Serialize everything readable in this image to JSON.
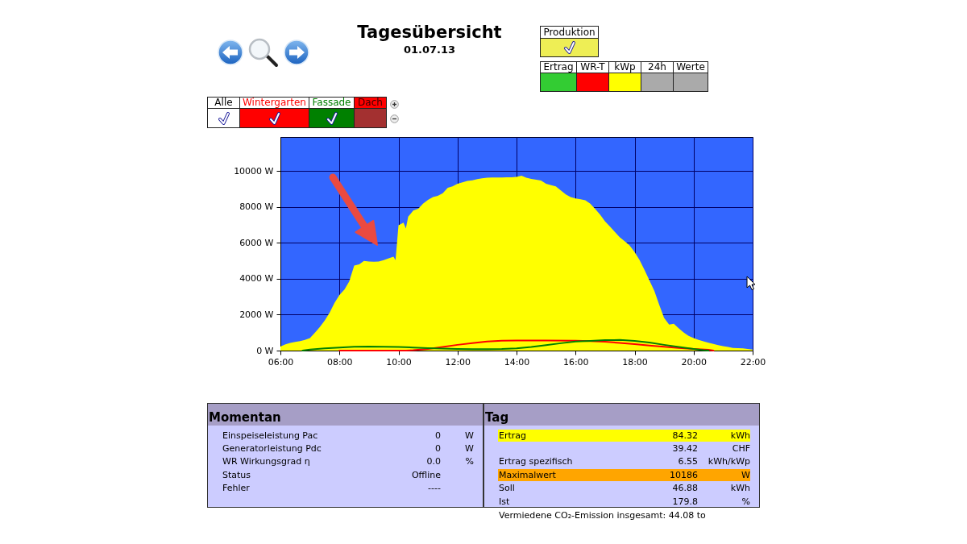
{
  "chart_data": [
    {
      "type": "area",
      "title": "Tagesübersicht",
      "subtitle": "01.07.13",
      "xlim": [
        6,
        22
      ],
      "xticks": [
        {
          "value": 6,
          "label": "06:00"
        },
        {
          "value": 8,
          "label": "08:00"
        },
        {
          "value": 10,
          "label": "10:00"
        },
        {
          "value": 12,
          "label": "12:00"
        },
        {
          "value": 14,
          "label": "14:00"
        },
        {
          "value": 16,
          "label": "16:00"
        },
        {
          "value": 18,
          "label": "18:00"
        },
        {
          "value": 20,
          "label": "20:00"
        },
        {
          "value": 22,
          "label": "22:00"
        }
      ],
      "ylim": [
        0,
        11900
      ],
      "yticks": [
        {
          "value": 0,
          "label": "0 W"
        },
        {
          "value": 2000,
          "label": "2000 W"
        },
        {
          "value": 4000,
          "label": "4000 W"
        },
        {
          "value": 6000,
          "label": "6000 W"
        },
        {
          "value": 8000,
          "label": "8000 W"
        },
        {
          "value": 10000,
          "label": "10000 W"
        }
      ],
      "grid": true,
      "legend": "top left",
      "series": [
        {
          "type": "area",
          "color": "#ffff00",
          "x": [
            6,
            6.17,
            6.33,
            6.5,
            6.67,
            6.83,
            7,
            7.17,
            7.33,
            7.5,
            7.67,
            7.83,
            8,
            8.17,
            8.33,
            8.5,
            8.67,
            8.83,
            9,
            9.17,
            9.33,
            9.5,
            9.67,
            9.83,
            9.9,
            9.95,
            10,
            10.17,
            10.25,
            10.33,
            10.5,
            10.67,
            10.83,
            11,
            11.17,
            11.33,
            11.5,
            11.67,
            11.83,
            12,
            12.17,
            12.33,
            12.5,
            12.67,
            12.83,
            13,
            13.17,
            13.33,
            13.5,
            13.67,
            13.83,
            14,
            14.17,
            14.33,
            14.5,
            14.67,
            14.83,
            15,
            15.17,
            15.33,
            15.5,
            15.67,
            15.83,
            16,
            16.17,
            16.33,
            16.5,
            16.67,
            16.83,
            17,
            17.17,
            17.33,
            17.5,
            17.67,
            17.83,
            18,
            18.17,
            18.33,
            18.5,
            18.67,
            18.83,
            19,
            19.17,
            19.33,
            19.5,
            19.67,
            19.83,
            20,
            20.17,
            20.33,
            20.5,
            20.67,
            20.83,
            21,
            21.17,
            21.33,
            21.5,
            21.67,
            21.83,
            22
          ],
          "values": [
            220,
            350,
            430,
            480,
            530,
            600,
            700,
            1000,
            1300,
            1670,
            2120,
            2650,
            3100,
            3400,
            3850,
            4740,
            4800,
            5000,
            4960,
            4950,
            4960,
            5040,
            5140,
            5230,
            5040,
            6000,
            6980,
            7130,
            6800,
            7460,
            7800,
            7900,
            8180,
            8400,
            8550,
            8620,
            8770,
            9070,
            9150,
            9300,
            9370,
            9450,
            9490,
            9550,
            9600,
            9630,
            9640,
            9640,
            9640,
            9650,
            9660,
            9680,
            9750,
            9630,
            9570,
            9520,
            9480,
            9300,
            9220,
            9150,
            8920,
            8700,
            8550,
            8480,
            8430,
            8370,
            8180,
            7880,
            7580,
            7200,
            6900,
            6610,
            6310,
            6080,
            5860,
            5490,
            5040,
            4510,
            3920,
            3320,
            2570,
            1820,
            1450,
            1490,
            1230,
            1000,
            820,
            700,
            600,
            520,
            440,
            370,
            300,
            250,
            200,
            150,
            130,
            120,
            90,
            60
          ]
        },
        {
          "name": "Wintergarten",
          "type": "line",
          "color": "#ff0000",
          "x": [
            8,
            9,
            10,
            10.25,
            10.5,
            11,
            11.5,
            12,
            12.5,
            13,
            13.5,
            14,
            15,
            16,
            16.5,
            17,
            17.5,
            18,
            18.5,
            19,
            19.5,
            20,
            20.5,
            20.67
          ],
          "values": [
            0,
            0,
            0,
            0,
            20,
            90,
            200,
            320,
            420,
            510,
            550,
            560,
            560,
            550,
            530,
            490,
            430,
            360,
            280,
            210,
            150,
            90,
            40,
            0
          ]
        },
        {
          "name": "Fassade",
          "type": "line",
          "color": "#008000",
          "x": [
            6.75,
            7,
            7.5,
            8,
            8.5,
            9,
            9.5,
            10,
            10.5,
            11,
            11.5,
            12,
            12.5,
            13,
            13.5,
            14,
            14.5,
            15,
            15.5,
            16,
            16.5,
            17,
            17.5,
            18,
            18.5,
            19,
            19.5,
            20,
            20.33,
            20.5
          ],
          "values": [
            0,
            60,
            120,
            170,
            210,
            220,
            210,
            200,
            170,
            140,
            110,
            90,
            80,
            80,
            90,
            120,
            200,
            300,
            410,
            500,
            540,
            580,
            590,
            540,
            450,
            320,
            200,
            90,
            20,
            0
          ]
        }
      ],
      "annotations": [
        "Alle",
        "Dach",
        "Produktion",
        "Ertrag",
        "WR-T",
        "kWp",
        "24h",
        "Werte"
      ]
    },
    {
      "type": "other",
      "title": "Momentan",
      "annotations": [
        "Einspeiseleistung Pac",
        "0",
        "W",
        "Generatorleistung Pdc",
        "0",
        "W",
        "WR Wirkungsgrad η",
        "0.0",
        "%",
        "Status",
        "Offline",
        null,
        "Fehler",
        "----",
        null
      ]
    },
    {
      "type": "other",
      "title": "Tag",
      "annotations": [
        "Ertrag",
        "84.32",
        "kWh",
        null,
        "39.42",
        "CHF",
        "Ertrag spezifisch",
        "6.55",
        "kWh/kWp",
        "Maximalwert",
        "10186",
        "W",
        "Soll",
        "46.88",
        "kWh",
        "Ist",
        "179.8",
        "%",
        "Vermiedene CO₂-Emission insgesamt: 44.08 to"
      ],
      "colors": [
        "#ffff00",
        null,
        null,
        "#ffa500",
        null,
        null
      ]
    }
  ]
}
